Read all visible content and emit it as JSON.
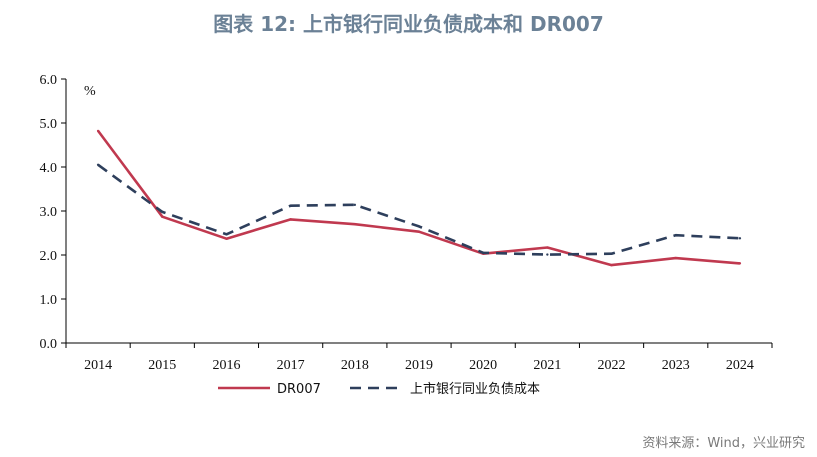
{
  "title": "图表 12: 上市银行同业负债成本和 DR007",
  "source": "资料来源：Wind，兴业研究",
  "colors": {
    "title": "#6b8196",
    "dr007": "#c0394f",
    "bank": "#2e3f5c",
    "axis": "#000000"
  },
  "chart_data": {
    "type": "line",
    "categories": [
      "2014",
      "2015",
      "2016",
      "2017",
      "2018",
      "2019",
      "2020",
      "2021",
      "2022",
      "2023",
      "2024"
    ],
    "y_unit": "%",
    "ylim": [
      0,
      6
    ],
    "yticks": [
      "0.0",
      "1.0",
      "2.0",
      "3.0",
      "4.0",
      "5.0",
      "6.0"
    ],
    "grid": false,
    "legend_position": "bottom",
    "series": [
      {
        "name": "DR007",
        "style": "solid",
        "values": [
          4.82,
          2.87,
          2.37,
          2.81,
          2.7,
          2.53,
          2.03,
          2.17,
          1.77,
          1.93,
          1.81
        ]
      },
      {
        "name": "上市银行同业负债成本",
        "style": "dashed",
        "values": [
          4.05,
          2.98,
          2.47,
          3.12,
          3.14,
          2.65,
          2.05,
          2.01,
          2.03,
          2.45,
          2.38
        ]
      }
    ]
  }
}
